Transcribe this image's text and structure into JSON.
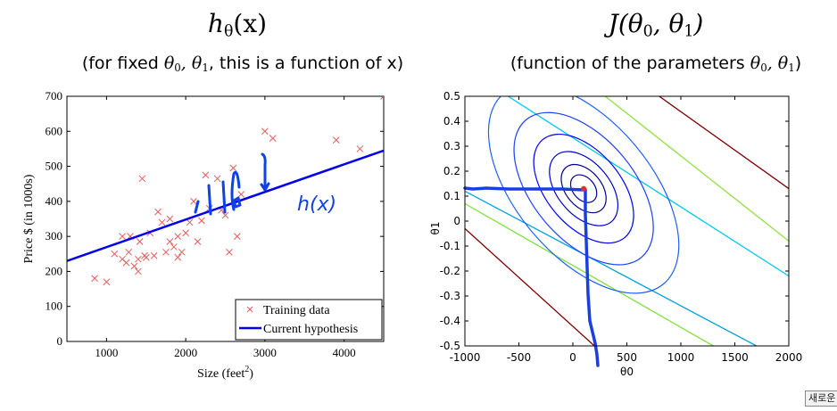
{
  "titles": {
    "left_main": "h",
    "left_main_sub": "θ",
    "left_main_arg": "(x)",
    "right_main": "J(θ",
    "right_main_sub0": "0",
    "right_main_mid": ", θ",
    "right_main_sub1": "1",
    "right_main_end": ")",
    "left_subtitle_pre": "(for fixed ",
    "left_subtitle_theta": "θ",
    "left_subtitle_sub0": "0",
    "left_subtitle_comma": ", θ",
    "left_subtitle_sub1": "1",
    "left_subtitle_post": ", this is a function of x)",
    "right_subtitle_pre": "(function of the parameters ",
    "right_subtitle_theta": "θ",
    "right_subtitle_sub0": "0",
    "right_subtitle_comma": ", θ",
    "right_subtitle_sub1": "1",
    "right_subtitle_post": ")"
  },
  "annotations": {
    "handwritten_label": "h(x)"
  },
  "corner_button_label": "새로운",
  "colors": {
    "training_marker": "#e85a5a",
    "hypothesis_line": "#0000ee",
    "handwriting": "#1040e8",
    "descent_path": "#1a3fe0",
    "min_marker": "#e03030"
  },
  "chart_data": [
    {
      "type": "scatter",
      "xlabel": "Size (feet",
      "xlabel_sup": "2",
      "xlabel_end": ")",
      "ylabel": "Price $ (in 1000s)",
      "xlim": [
        500,
        4500
      ],
      "ylim": [
        0,
        700
      ],
      "xticks": [
        1000,
        2000,
        3000,
        4000
      ],
      "yticks": [
        0,
        100,
        200,
        300,
        400,
        500,
        600,
        700
      ],
      "grid": false,
      "legend_position": "bottom-right",
      "legend": [
        {
          "label": "Training data",
          "kind": "marker"
        },
        {
          "label": "Current hypothesis",
          "kind": "line"
        }
      ],
      "series": [
        {
          "name": "Training data",
          "marker": "x",
          "points": [
            [
              850,
              180
            ],
            [
              1000,
              170
            ],
            [
              1100,
              250
            ],
            [
              1200,
              235
            ],
            [
              1200,
              300
            ],
            [
              1250,
              225
            ],
            [
              1280,
              255
            ],
            [
              1300,
              300
            ],
            [
              1350,
              215
            ],
            [
              1400,
              200
            ],
            [
              1400,
              235
            ],
            [
              1420,
              285
            ],
            [
              1450,
              465
            ],
            [
              1480,
              245
            ],
            [
              1500,
              240
            ],
            [
              1550,
              310
            ],
            [
              1600,
              245
            ],
            [
              1650,
              370
            ],
            [
              1700,
              340
            ],
            [
              1750,
              255
            ],
            [
              1800,
              285
            ],
            [
              1800,
              350
            ],
            [
              1850,
              270
            ],
            [
              1900,
              240
            ],
            [
              1900,
              300
            ],
            [
              1950,
              255
            ],
            [
              2000,
              310
            ],
            [
              2050,
              340
            ],
            [
              2100,
              400
            ],
            [
              2150,
              285
            ],
            [
              2200,
              345
            ],
            [
              2250,
              475
            ],
            [
              2300,
              380
            ],
            [
              2400,
              465
            ],
            [
              2450,
              375
            ],
            [
              2500,
              360
            ],
            [
              2550,
              255
            ],
            [
              2600,
              495
            ],
            [
              2650,
              300
            ],
            [
              2700,
              420
            ],
            [
              3000,
              600
            ],
            [
              3100,
              580
            ],
            [
              3900,
              575
            ],
            [
              4200,
              550
            ],
            [
              4500,
              700
            ]
          ]
        },
        {
          "name": "Current hypothesis",
          "type": "line",
          "x": [
            500,
            4500
          ],
          "y": [
            230,
            545
          ]
        }
      ]
    },
    {
      "type": "contour",
      "xlabel": "θ0",
      "ylabel": "θ1",
      "xlim": [
        -1000,
        2000
      ],
      "ylim": [
        -0.5,
        0.5
      ],
      "xticks": [
        -1000,
        -500,
        0,
        500,
        1000,
        1500,
        2000
      ],
      "xtick_labels": [
        "-1000",
        "-500",
        "0",
        "500",
        "1000",
        "1500",
        "2000"
      ],
      "yticks": [
        0.5,
        0.4,
        0.3,
        0.2,
        0.1,
        0,
        -0.1,
        -0.2,
        -0.3,
        -0.4,
        -0.5
      ],
      "ytick_labels": [
        "0.5",
        "0.4",
        "0.3",
        "0.2",
        "0.1",
        "0",
        "-0.1",
        "-0.2",
        "-0.3",
        "-0.4",
        "-0.5"
      ],
      "minimum": [
        100,
        0.13
      ],
      "ellipses": [
        {
          "rx": 90,
          "ry": 0.08,
          "color": "#00008b"
        },
        {
          "rx": 160,
          "ry": 0.13,
          "color": "#00008b"
        },
        {
          "rx": 250,
          "ry": 0.19,
          "color": "#0000cd"
        },
        {
          "rx": 370,
          "ry": 0.27,
          "color": "#0000ff"
        },
        {
          "rx": 520,
          "ry": 0.37,
          "color": "#1e40ff"
        },
        {
          "rx": 720,
          "ry": 0.49,
          "color": "#1f5fff"
        }
      ],
      "diagonal_lines": [
        {
          "color": "#00a0e0",
          "x1": -1000,
          "y1": 0.12,
          "x2": 1700,
          "y2": -0.5
        },
        {
          "color": "#00c8f0",
          "x1": -600,
          "y1": 0.5,
          "x2": 2000,
          "y2": -0.22
        },
        {
          "color": "#80e040",
          "x1": -1000,
          "y1": 0.07,
          "x2": 1300,
          "y2": -0.5
        },
        {
          "color": "#90e040",
          "x1": 300,
          "y1": 0.5,
          "x2": 2000,
          "y2": -0.08
        },
        {
          "color": "#800000",
          "x1": -1000,
          "y1": -0.03,
          "x2": 200,
          "y2": -0.5
        },
        {
          "color": "#800000",
          "x1": 800,
          "y1": 0.5,
          "x2": 2000,
          "y2": 0.13
        }
      ]
    }
  ]
}
